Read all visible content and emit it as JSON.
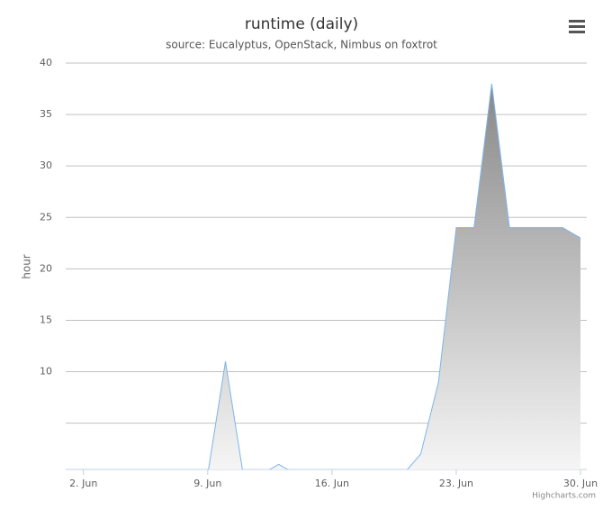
{
  "chart_data": {
    "type": "area",
    "title": "runtime (daily)",
    "subtitle": "source: Eucalyptus, OpenStack, Nimbus on foxtrot",
    "y_label": "hour",
    "credits": "Highcharts.com",
    "x": [
      1,
      2,
      3,
      4,
      5,
      6,
      7,
      8,
      9,
      10,
      11,
      12,
      13,
      14,
      15,
      16,
      17,
      18,
      19,
      20,
      21,
      22,
      23,
      24,
      25,
      26,
      27,
      28,
      29,
      30
    ],
    "xticks": [
      {
        "value": 2,
        "label": "2. Jun"
      },
      {
        "value": 9,
        "label": "9. Jun"
      },
      {
        "value": 16,
        "label": "16. Jun"
      },
      {
        "value": 23,
        "label": "23. Jun"
      },
      {
        "value": 30,
        "label": "30. Jun"
      }
    ],
    "series": [
      {
        "name": "runtime",
        "color": "#7cb5ec",
        "values": [
          0,
          0,
          0,
          0,
          0,
          0,
          0,
          0,
          0,
          11,
          0,
          0,
          1,
          0,
          0,
          0,
          0,
          0,
          0,
          0,
          2,
          9,
          24,
          24,
          38,
          24,
          24,
          24,
          24,
          23
        ]
      }
    ],
    "ylim": [
      0.5,
      40
    ],
    "yticks": [
      {
        "value": 5,
        "label": null
      },
      10,
      15,
      20,
      25,
      30,
      35,
      40
    ],
    "grid": true
  }
}
